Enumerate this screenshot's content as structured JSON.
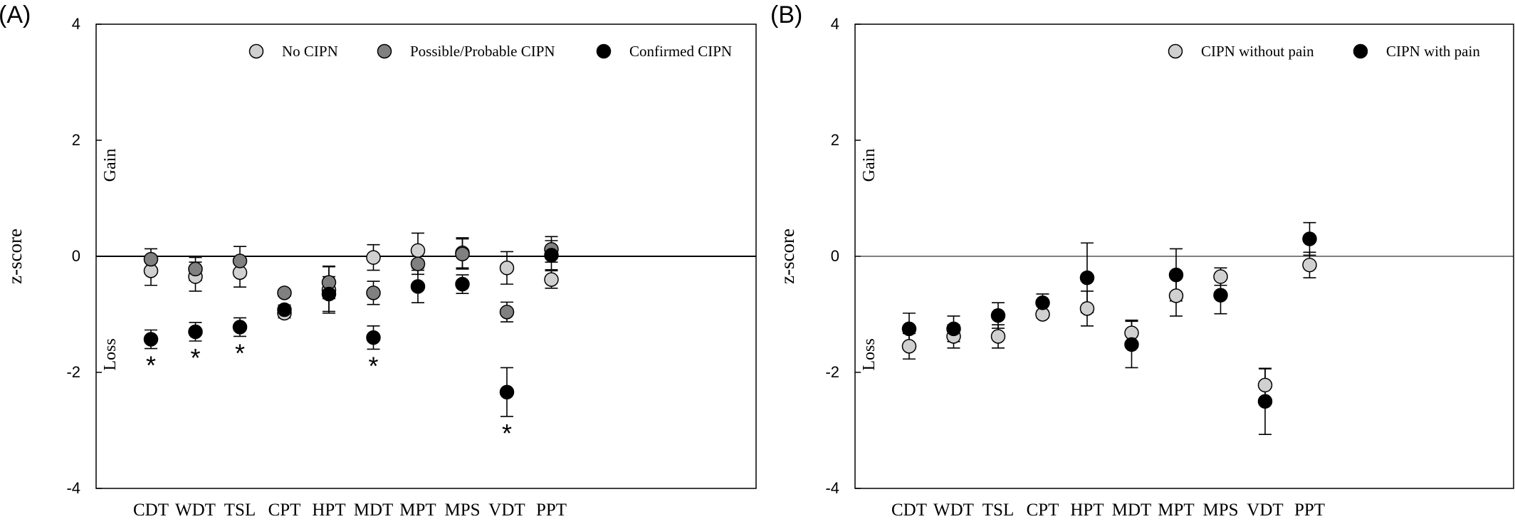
{
  "chart_data": [
    {
      "type": "scatter",
      "panel_label": "(A)",
      "title": "",
      "xlabel": "",
      "ylabel": "z-score",
      "ylim": [
        -4,
        4
      ],
      "yticks": [
        -4,
        -2,
        0,
        2,
        4
      ],
      "categories": [
        "CDT",
        "WDT",
        "TSL",
        "CPT",
        "HPT",
        "MDT",
        "MPT",
        "MPS",
        "VDT",
        "PPT"
      ],
      "annotations": {
        "gain": "Gain",
        "loss": "Loss",
        "significance_marker": "*"
      },
      "significant_categories": [
        "CDT",
        "WDT",
        "TSL",
        "MDT",
        "VDT"
      ],
      "zero_line": true,
      "grid": false,
      "legend_position": "top-right",
      "series": [
        {
          "name": "No CIPN",
          "color": "#d0d0d0",
          "values": [
            -0.25,
            -0.35,
            -0.28,
            -0.98,
            -0.58,
            -0.02,
            0.1,
            0.06,
            -0.2,
            -0.4
          ],
          "err_lower": [
            0.25,
            0.25,
            0.25,
            0.08,
            0.4,
            0.22,
            0.3,
            0.26,
            0.28,
            0.15
          ],
          "err_upper": [
            0.25,
            0.25,
            0.25,
            0.08,
            0.4,
            0.22,
            0.3,
            0.26,
            0.28,
            0.15
          ]
        },
        {
          "name": "Possible/Probable CIPN",
          "color": "#808080",
          "values": [
            -0.05,
            -0.22,
            -0.08,
            -0.63,
            -0.45,
            -0.63,
            -0.13,
            0.04,
            -0.96,
            0.12
          ],
          "err_lower": [
            0.18,
            0.2,
            0.25,
            0.06,
            0.28,
            0.2,
            0.18,
            0.26,
            0.17,
            0.22
          ],
          "err_upper": [
            0.18,
            0.2,
            0.25,
            0.06,
            0.28,
            0.2,
            0.18,
            0.26,
            0.17,
            0.22
          ]
        },
        {
          "name": "Confirmed CIPN",
          "color": "#000000",
          "values": [
            -1.43,
            -1.3,
            -1.22,
            -0.92,
            -0.65,
            -1.4,
            -0.52,
            -0.48,
            -2.34,
            0.02
          ],
          "err_lower": [
            0.16,
            0.16,
            0.16,
            0.08,
            0.3,
            0.2,
            0.28,
            0.16,
            0.42,
            0.25
          ],
          "err_upper": [
            0.16,
            0.16,
            0.16,
            0.08,
            0.3,
            0.2,
            0.28,
            0.16,
            0.42,
            0.25
          ]
        }
      ]
    },
    {
      "type": "scatter",
      "panel_label": "(B)",
      "title": "",
      "xlabel": "",
      "ylabel": "z-score",
      "ylim": [
        -4,
        4
      ],
      "yticks": [
        -4,
        -2,
        0,
        2,
        4
      ],
      "categories": [
        "CDT",
        "WDT",
        "TSL",
        "CPT",
        "HPT",
        "MDT",
        "MPT",
        "MPS",
        "VDT",
        "PPT"
      ],
      "annotations": {
        "gain": "Gain",
        "loss": "Loss",
        "significance_marker": ""
      },
      "significant_categories": [],
      "zero_line": true,
      "grid": false,
      "legend_position": "top-right",
      "series": [
        {
          "name": "CIPN without pain",
          "color": "#d0d0d0",
          "values": [
            -1.55,
            -1.38,
            -1.38,
            -1.0,
            -0.9,
            -1.32,
            -0.68,
            -0.35,
            -2.22,
            -0.15
          ],
          "err_lower": [
            0.22,
            0.2,
            0.2,
            0.06,
            0.3,
            0.22,
            0.35,
            0.15,
            0.28,
            0.22
          ],
          "err_upper": [
            0.22,
            0.2,
            0.2,
            0.06,
            0.3,
            0.22,
            0.35,
            0.15,
            0.28,
            0.22
          ]
        },
        {
          "name": "CIPN with pain",
          "color": "#000000",
          "values": [
            -1.25,
            -1.25,
            -1.02,
            -0.8,
            -0.37,
            -1.52,
            -0.32,
            -0.67,
            -2.5,
            0.3
          ],
          "err_lower": [
            0.27,
            0.22,
            0.22,
            0.15,
            0.6,
            0.4,
            0.45,
            0.32,
            0.57,
            0.28
          ],
          "err_upper": [
            0.27,
            0.22,
            0.22,
            0.15,
            0.6,
            0.4,
            0.45,
            0.32,
            0.57,
            0.28
          ]
        }
      ]
    }
  ]
}
